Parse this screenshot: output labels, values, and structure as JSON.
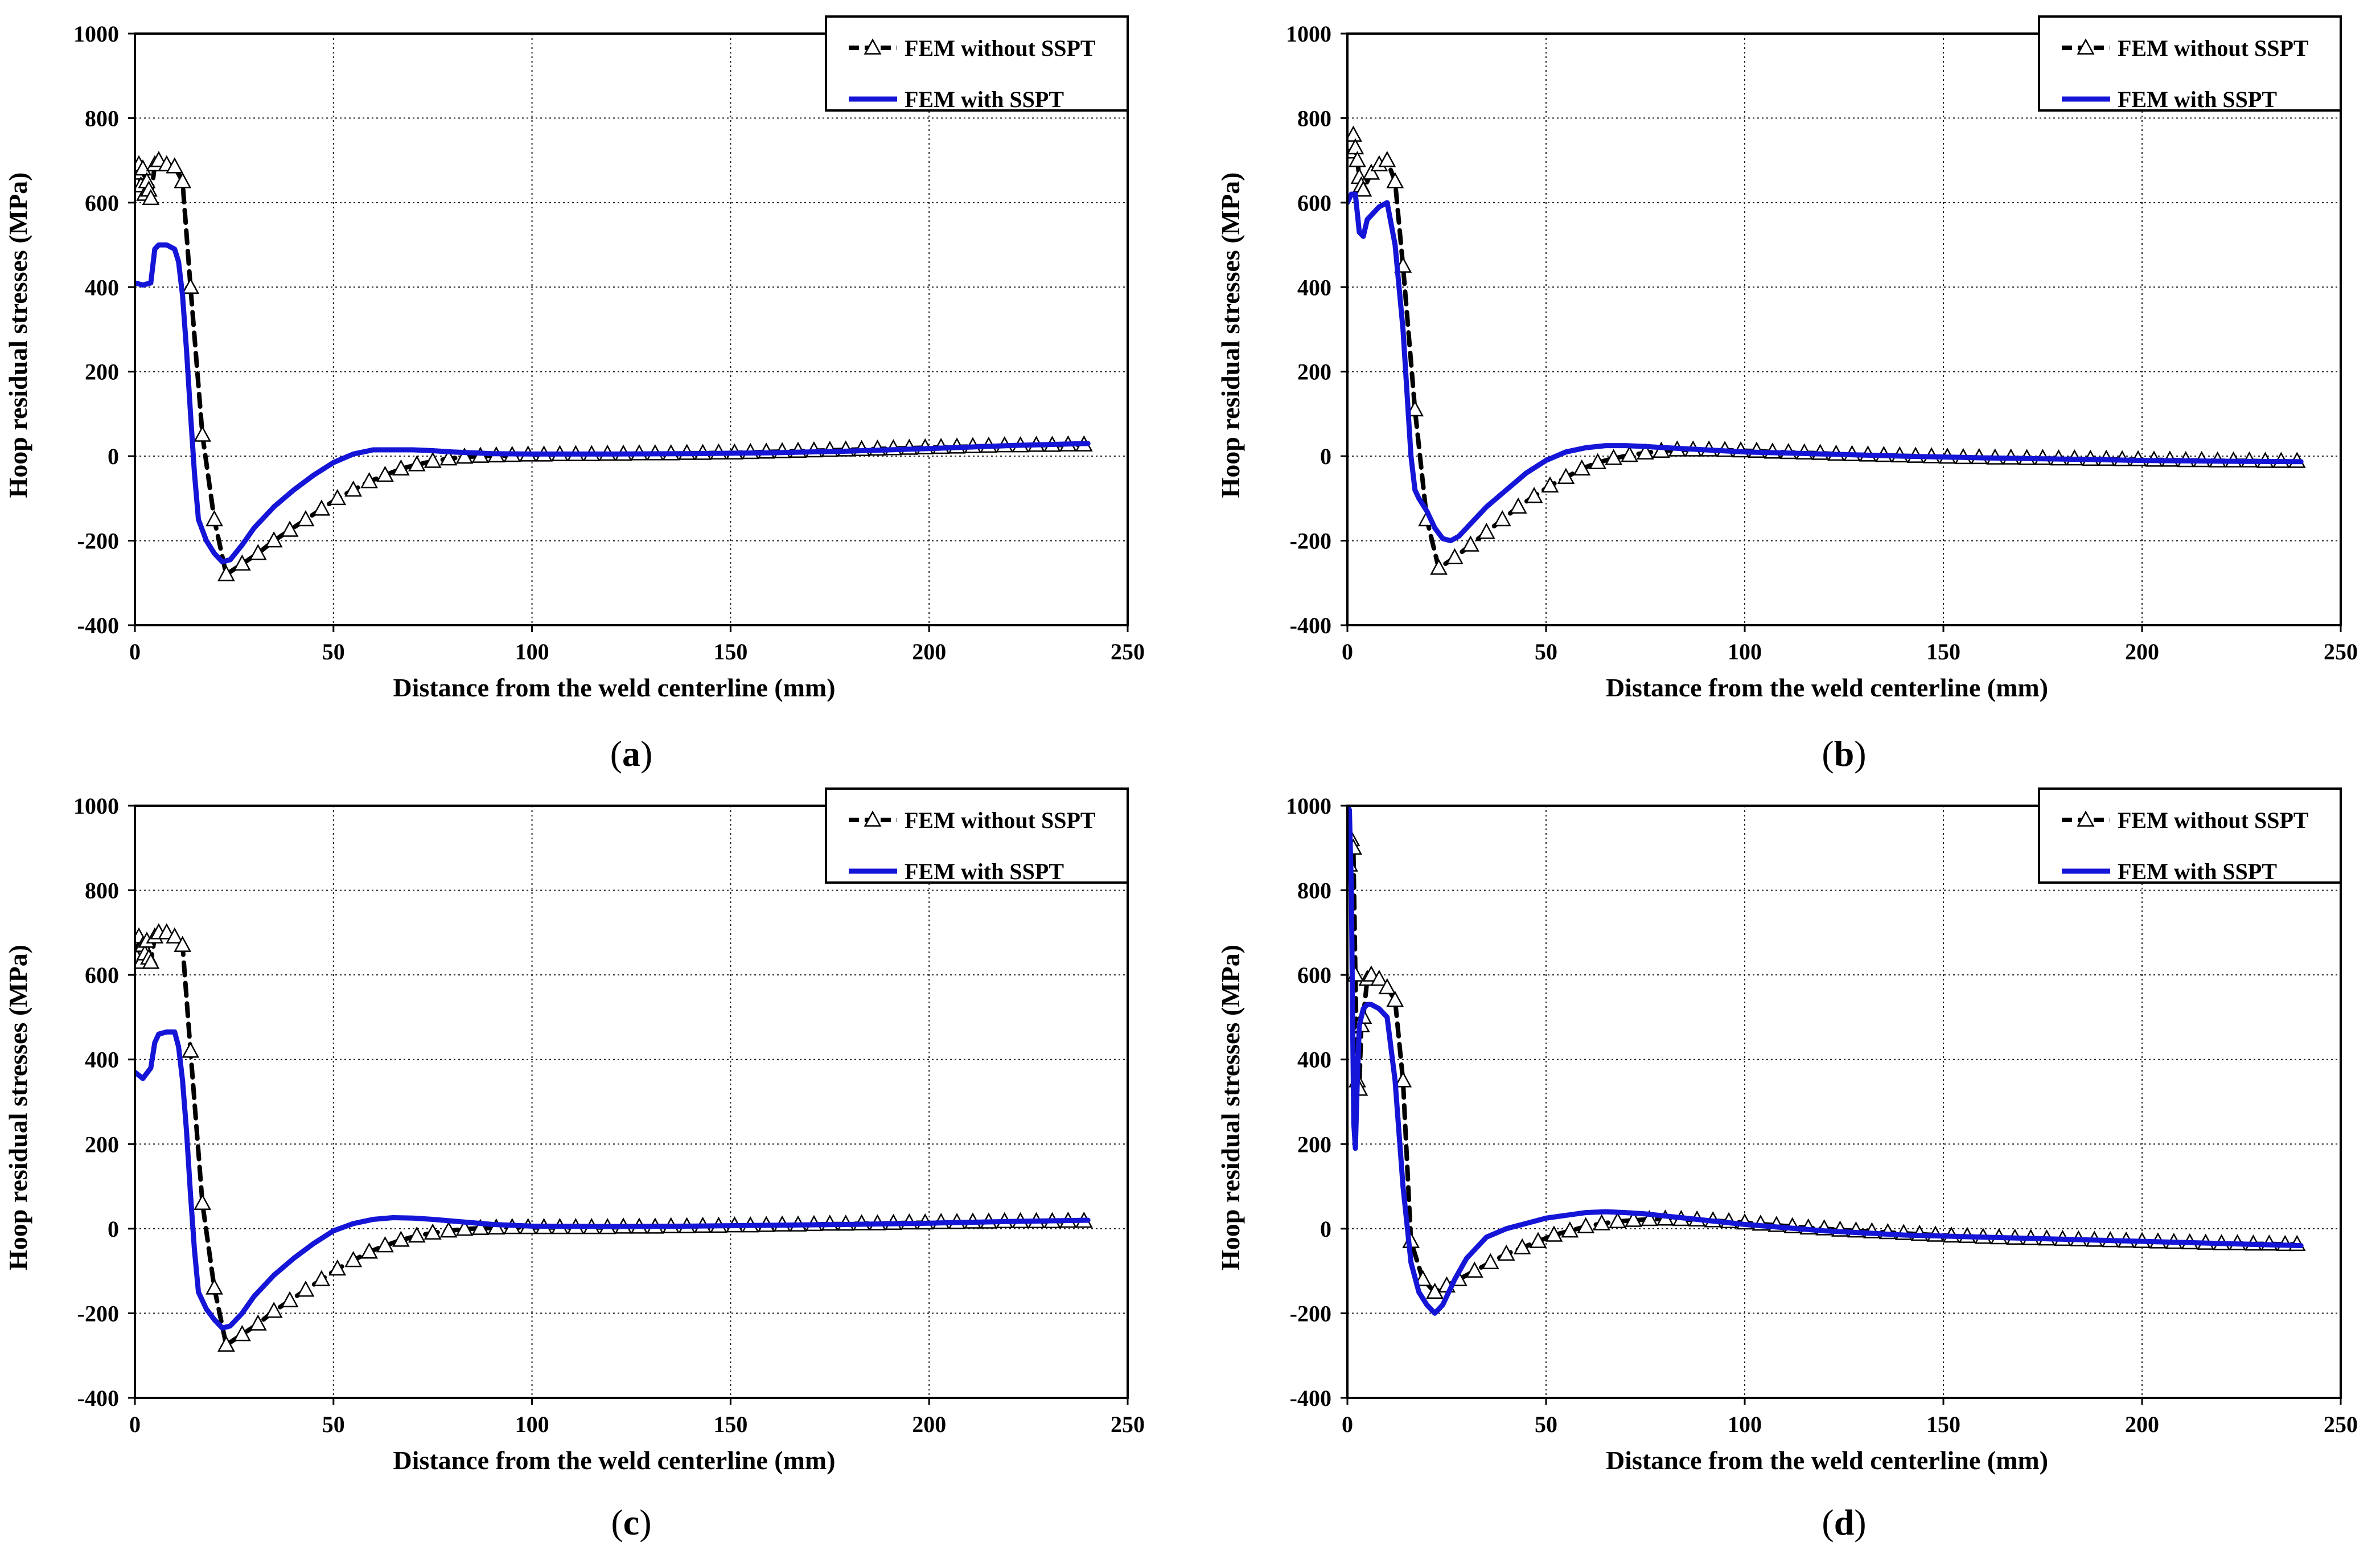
{
  "chart_data": [
    {
      "id": "a",
      "type": "line",
      "caption": "a",
      "xlabel": "Distance from the weld centerline (mm)",
      "ylabel": "Hoop residual stresses (MPa)",
      "xlim": [
        0,
        250
      ],
      "ylim": [
        -400,
        1000
      ],
      "xticks": [
        "0",
        "50",
        "100",
        "150",
        "200",
        "250"
      ],
      "yticks": [
        "-400",
        "-200",
        "0",
        "200",
        "400",
        "600",
        "800",
        "1000"
      ],
      "grid": true,
      "legend_position": "top-right",
      "series": [
        {
          "name": "FEM without SSPT",
          "color": "#000000",
          "style": "dashed-triangle",
          "x": [
            0.5,
            1,
            1.5,
            2,
            2.5,
            3,
            3.5,
            4,
            5,
            6,
            8,
            10,
            12,
            14,
            17,
            20,
            23,
            27,
            31,
            35,
            39,
            43,
            47,
            51,
            55,
            59,
            63,
            67,
            71,
            75,
            79,
            83,
            87,
            91,
            95,
            99,
            103,
            107,
            111,
            115,
            119,
            123,
            127,
            131,
            135,
            139,
            143,
            147,
            151,
            155,
            159,
            163,
            167,
            171,
            175,
            179,
            183,
            187,
            191,
            195,
            199,
            203,
            207,
            211,
            215,
            219,
            223,
            227,
            231,
            235,
            239
          ],
          "y": [
            670,
            690,
            640,
            680,
            620,
            650,
            630,
            610,
            690,
            700,
            690,
            685,
            650,
            400,
            50,
            -150,
            -280,
            -255,
            -230,
            -200,
            -175,
            -150,
            -125,
            -100,
            -80,
            -60,
            -45,
            -30,
            -20,
            -12,
            -6,
            -2,
            0,
            1,
            2,
            3,
            3,
            4,
            4,
            4,
            5,
            5,
            6,
            6,
            6,
            7,
            7,
            8,
            8,
            9,
            10,
            11,
            12,
            13,
            14,
            15,
            16,
            17,
            18,
            19,
            20,
            21,
            22,
            23,
            24,
            25,
            25,
            26,
            26,
            27,
            27
          ]
        },
        {
          "name": "FEM with SSPT",
          "color": "#1515d8",
          "style": "solid",
          "x": [
            0,
            2,
            4,
            5,
            6,
            8,
            10,
            11,
            12,
            13,
            14,
            15,
            16,
            18,
            20,
            22,
            24,
            27,
            30,
            35,
            40,
            45,
            50,
            55,
            60,
            65,
            70,
            75,
            80,
            90,
            100,
            120,
            140,
            160,
            180,
            200,
            220,
            240
          ],
          "y": [
            410,
            405,
            410,
            490,
            500,
            500,
            490,
            460,
            380,
            250,
            100,
            -40,
            -150,
            -200,
            -230,
            -250,
            -245,
            -210,
            -170,
            -120,
            -80,
            -45,
            -15,
            5,
            15,
            15,
            15,
            13,
            10,
            6,
            5,
            5,
            6,
            8,
            12,
            18,
            25,
            30
          ]
        }
      ]
    },
    {
      "id": "b",
      "type": "line",
      "caption": "b",
      "xlabel": "Distance from the weld centerline (mm)",
      "ylabel": "Hoop residual stresses (MPa)",
      "xlim": [
        0,
        250
      ],
      "ylim": [
        -400,
        1000
      ],
      "xticks": [
        "0",
        "50",
        "100",
        "150",
        "200",
        "250"
      ],
      "yticks": [
        "-400",
        "-200",
        "0",
        "200",
        "400",
        "600",
        "800",
        "1000"
      ],
      "grid": true,
      "legend_position": "top-right",
      "series": [
        {
          "name": "FEM without SSPT",
          "color": "#000000",
          "style": "dashed-triangle",
          "x": [
            0.5,
            1,
            1.5,
            2,
            2.5,
            3,
            3.5,
            4,
            6,
            8,
            10,
            12,
            14,
            17,
            20,
            23,
            27,
            31,
            35,
            39,
            43,
            47,
            51,
            55,
            59,
            63,
            67,
            71,
            75,
            79,
            83,
            87,
            91,
            95,
            99,
            103,
            107,
            111,
            115,
            119,
            123,
            127,
            131,
            135,
            139,
            143,
            147,
            151,
            155,
            159,
            163,
            167,
            171,
            175,
            179,
            183,
            187,
            191,
            195,
            199,
            203,
            207,
            211,
            215,
            219,
            223,
            227,
            231,
            235,
            239
          ],
          "y": [
            720,
            740,
            760,
            730,
            700,
            660,
            640,
            630,
            670,
            690,
            700,
            650,
            450,
            110,
            -150,
            -265,
            -240,
            -210,
            -180,
            -150,
            -120,
            -95,
            -70,
            -50,
            -30,
            -15,
            -5,
            2,
            8,
            12,
            15,
            15,
            15,
            14,
            13,
            12,
            10,
            9,
            8,
            7,
            5,
            4,
            3,
            2,
            1,
            0,
            -1,
            -2,
            -3,
            -3,
            -4,
            -4,
            -5,
            -5,
            -6,
            -6,
            -7,
            -7,
            -8,
            -8,
            -9,
            -9,
            -10,
            -10,
            -11,
            -11,
            -11,
            -12,
            -12,
            -12
          ]
        },
        {
          "name": "FEM with SSPT",
          "color": "#1515d8",
          "style": "solid",
          "x": [
            0,
            1,
            2,
            3,
            4,
            5,
            6,
            8,
            10,
            12,
            14,
            15,
            16,
            17,
            18,
            20,
            22,
            24,
            26,
            28,
            30,
            35,
            40,
            45,
            50,
            55,
            60,
            65,
            70,
            75,
            80,
            90,
            100,
            120,
            140,
            160,
            180,
            200,
            220,
            240
          ],
          "y": [
            600,
            620,
            620,
            530,
            520,
            560,
            570,
            590,
            600,
            500,
            300,
            150,
            0,
            -80,
            -100,
            -130,
            -170,
            -195,
            -200,
            -190,
            -170,
            -120,
            -80,
            -40,
            -10,
            10,
            20,
            25,
            25,
            23,
            20,
            15,
            10,
            5,
            0,
            -4,
            -7,
            -10,
            -12,
            -13
          ]
        }
      ]
    },
    {
      "id": "c",
      "type": "line",
      "caption": "c",
      "xlabel": "Distance from the weld centerline (mm)",
      "ylabel": "Hoop residual stresses (MPa)",
      "xlim": [
        0,
        250
      ],
      "ylim": [
        -400,
        1000
      ],
      "xticks": [
        "0",
        "50",
        "100",
        "150",
        "200",
        "250"
      ],
      "yticks": [
        "-400",
        "-200",
        "0",
        "200",
        "400",
        "600",
        "800",
        "1000"
      ],
      "grid": true,
      "legend_position": "top-right",
      "series": [
        {
          "name": "FEM without SSPT",
          "color": "#000000",
          "style": "dashed-triangle",
          "x": [
            0.5,
            1,
            1.5,
            2,
            2.5,
            3,
            3.5,
            4,
            5,
            6,
            8,
            10,
            12,
            14,
            17,
            20,
            23,
            27,
            31,
            35,
            39,
            43,
            47,
            51,
            55,
            59,
            63,
            67,
            71,
            75,
            79,
            83,
            87,
            91,
            95,
            99,
            103,
            107,
            111,
            115,
            119,
            123,
            127,
            131,
            135,
            139,
            143,
            147,
            151,
            155,
            159,
            163,
            167,
            171,
            175,
            179,
            183,
            187,
            191,
            195,
            199,
            203,
            207,
            211,
            215,
            219,
            223,
            227,
            231,
            235,
            239
          ],
          "y": [
            640,
            690,
            630,
            670,
            650,
            680,
            640,
            630,
            690,
            700,
            700,
            690,
            670,
            420,
            60,
            -140,
            -275,
            -250,
            -225,
            -195,
            -170,
            -145,
            -120,
            -95,
            -75,
            -55,
            -40,
            -27,
            -17,
            -10,
            -5,
            -1,
            1,
            2,
            3,
            3,
            3,
            3,
            3,
            3,
            3,
            4,
            4,
            4,
            5,
            5,
            6,
            6,
            7,
            7,
            8,
            9,
            9,
            10,
            11,
            11,
            12,
            12,
            13,
            14,
            14,
            15,
            15,
            16,
            16,
            17,
            17,
            17,
            17,
            18,
            18
          ]
        },
        {
          "name": "FEM with SSPT",
          "color": "#1515d8",
          "style": "solid",
          "x": [
            0,
            2,
            4,
            5,
            6,
            8,
            10,
            11,
            12,
            13,
            14,
            15,
            16,
            18,
            20,
            22,
            24,
            27,
            30,
            35,
            40,
            45,
            50,
            55,
            60,
            65,
            70,
            75,
            80,
            90,
            100,
            120,
            140,
            160,
            180,
            200,
            220,
            240
          ],
          "y": [
            370,
            355,
            380,
            440,
            460,
            465,
            465,
            430,
            350,
            230,
            80,
            -50,
            -150,
            -190,
            -215,
            -235,
            -230,
            -200,
            -160,
            -110,
            -70,
            -35,
            -5,
            12,
            22,
            26,
            25,
            22,
            18,
            10,
            6,
            5,
            6,
            8,
            10,
            13,
            17,
            20
          ]
        }
      ]
    },
    {
      "id": "d",
      "type": "line",
      "caption": "d",
      "xlabel": "Distance from the weld centerline (mm)",
      "ylabel": "Hoop residual stresses (MPa)",
      "xlim": [
        0,
        250
      ],
      "ylim": [
        -400,
        1000
      ],
      "xticks": [
        "0",
        "50",
        "100",
        "150",
        "200",
        "250"
      ],
      "yticks": [
        "-400",
        "-200",
        "0",
        "200",
        "400",
        "600",
        "800",
        "1000"
      ],
      "grid": true,
      "legend_position": "top-right",
      "series": [
        {
          "name": "FEM without SSPT",
          "color": "#000000",
          "style": "dashed-triangle",
          "x": [
            0.5,
            1,
            1.5,
            2,
            2.5,
            3,
            3.5,
            4,
            5,
            6,
            8,
            10,
            12,
            14,
            16,
            19,
            22,
            25,
            28,
            32,
            36,
            40,
            44,
            48,
            52,
            56,
            60,
            64,
            68,
            72,
            76,
            80,
            84,
            88,
            92,
            96,
            100,
            104,
            108,
            112,
            116,
            120,
            124,
            128,
            132,
            136,
            140,
            144,
            148,
            152,
            156,
            160,
            164,
            168,
            172,
            176,
            180,
            184,
            188,
            192,
            196,
            200,
            204,
            208,
            212,
            216,
            220,
            224,
            228,
            232,
            236,
            239
          ],
          "y": [
            860,
            920,
            900,
            600,
            350,
            330,
            480,
            500,
            590,
            600,
            590,
            570,
            540,
            350,
            -30,
            -120,
            -150,
            -135,
            -120,
            -100,
            -80,
            -60,
            -45,
            -30,
            -15,
            -5,
            5,
            12,
            17,
            20,
            22,
            23,
            22,
            21,
            19,
            17,
            14,
            11,
            8,
            5,
            2,
            0,
            -3,
            -5,
            -7,
            -9,
            -11,
            -13,
            -15,
            -17,
            -18,
            -20,
            -21,
            -22,
            -23,
            -24,
            -25,
            -26,
            -27,
            -28,
            -29,
            -30,
            -31,
            -32,
            -33,
            -34,
            -35,
            -35,
            -36,
            -36,
            -37,
            -37
          ]
        },
        {
          "name": "FEM with SSPT",
          "color": "#1515d8",
          "style": "solid",
          "x": [
            0,
            0.5,
            1,
            1.3,
            1.6,
            2,
            2.5,
            3,
            4,
            5,
            6,
            8,
            10,
            12,
            14,
            16,
            18,
            20,
            22,
            24,
            27,
            30,
            35,
            40,
            50,
            60,
            65,
            70,
            75,
            80,
            90,
            100,
            120,
            140,
            160,
            180,
            200,
            220,
            240
          ],
          "y": [
            1000,
            990,
            800,
            500,
            250,
            190,
            350,
            480,
            520,
            530,
            530,
            520,
            500,
            350,
            100,
            -80,
            -150,
            -180,
            -200,
            -180,
            -120,
            -70,
            -20,
            0,
            25,
            38,
            40,
            38,
            35,
            30,
            20,
            10,
            -5,
            -15,
            -20,
            -25,
            -30,
            -35,
            -40
          ]
        }
      ]
    }
  ]
}
